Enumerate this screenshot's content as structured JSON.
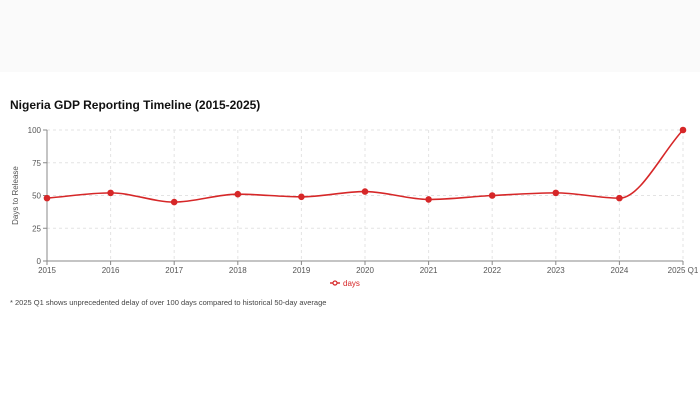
{
  "chart_data": {
    "type": "line",
    "title": "Nigeria GDP Reporting Timeline (2015-2025)",
    "xlabel": "",
    "ylabel": "Days to Release",
    "categories": [
      "2015",
      "2016",
      "2017",
      "2018",
      "2019",
      "2020",
      "2021",
      "2022",
      "2023",
      "2024",
      "2025 Q1"
    ],
    "series": [
      {
        "name": "days",
        "values": [
          48,
          52,
          45,
          51,
          49,
          53,
          47,
          50,
          52,
          48,
          100
        ],
        "color": "#d62728"
      }
    ],
    "ylim": [
      0,
      100
    ],
    "yticks": [
      0,
      25,
      50,
      75,
      100
    ],
    "grid": true,
    "legend_position": "bottom-center"
  },
  "footnote": "* 2025 Q1 shows unprecedented delay of over 100 days compared to historical 50-day average"
}
